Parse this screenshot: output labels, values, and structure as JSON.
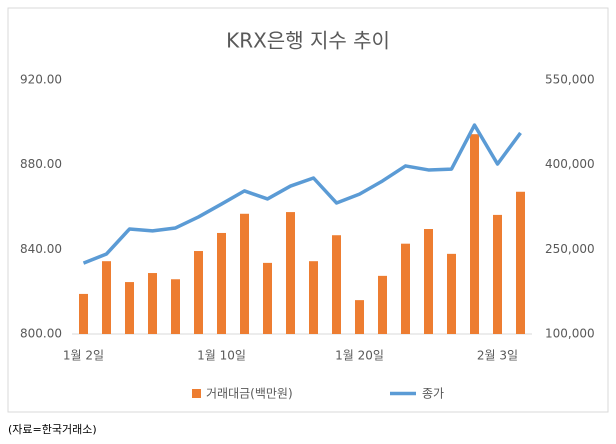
{
  "chart_data": {
    "type": "bar-line",
    "title": "KRX은행 지수 추이",
    "categories": [
      "1월 2일",
      null,
      null,
      null,
      null,
      null,
      "1월 10일",
      null,
      null,
      null,
      null,
      null,
      "1월 20일",
      null,
      null,
      null,
      null,
      null,
      "2월 3일",
      null
    ],
    "series": [
      {
        "name": "거래대금(백만원)",
        "type": "bar",
        "axis": "y2",
        "color": "#ed7d31",
        "values": [
          171000,
          229000,
          192000,
          208000,
          197000,
          247000,
          279000,
          313000,
          226000,
          316000,
          229000,
          275000,
          160000,
          203000,
          260000,
          286000,
          242000,
          454000,
          311000,
          352000
        ]
      },
      {
        "name": "종가",
        "type": "line",
        "color": "#5b9bd5",
        "values": [
          833.5,
          837.8,
          849.6,
          848.7,
          850.1,
          855.3,
          861.4,
          867.6,
          863.8,
          869.9,
          873.7,
          861.9,
          866.1,
          872.3,
          879.4,
          877.5,
          877.9,
          898.7,
          880.3,
          895.0
        ]
      }
    ],
    "ylim": [
      800,
      920
    ],
    "yticks": [
      {
        "value": 800,
        "label": "800.00"
      },
      {
        "value": 840,
        "label": "840.00"
      },
      {
        "value": 880,
        "label": "880.00"
      },
      {
        "value": 920,
        "label": "920.00"
      }
    ],
    "y2lim": [
      100000,
      550000
    ],
    "y2ticks": [
      {
        "value": 100000,
        "label": "100,000"
      },
      {
        "value": 250000,
        "label": "250,000"
      },
      {
        "value": 400000,
        "label": "400,000"
      },
      {
        "value": 550000,
        "label": "550,000"
      }
    ],
    "grid": false,
    "legend": "bottom",
    "source": "(자료=한국거래소)"
  }
}
